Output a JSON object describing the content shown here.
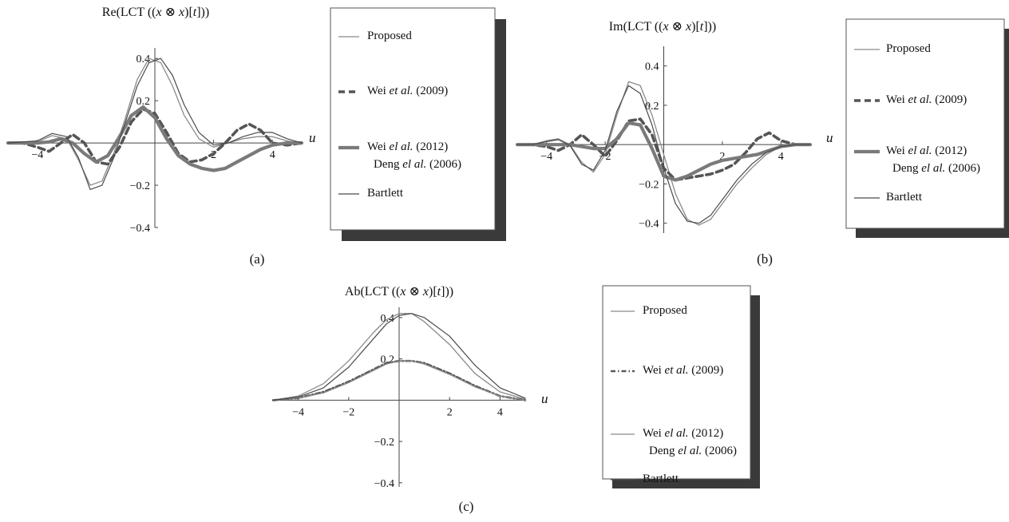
{
  "colors": {
    "background": "#ffffff",
    "axis": "#444444",
    "legend_border": "#555555",
    "legend_shadow": "#3a3a3a"
  },
  "chart_data": [
    {
      "id": "a",
      "type": "line",
      "title": "Re(LCT ((x ⊗ x)[t]))",
      "xlabel": "u",
      "ylabel": "",
      "caption": "(a)",
      "xlim": [
        -5,
        5
      ],
      "ylim": [
        -0.4,
        0.45
      ],
      "xticks": [
        {
          "v": -4,
          "label": "−4"
        },
        {
          "v": 2,
          "label": "2"
        },
        {
          "v": 4,
          "label": "4"
        }
      ],
      "yticks": [
        {
          "v": 0.4,
          "label": "0.4"
        },
        {
          "v": 0.2,
          "label": "0.2"
        },
        {
          "v": -0.2,
          "label": "−0.2"
        },
        {
          "v": -0.4,
          "label": "−0.4"
        }
      ],
      "legend_position": "right",
      "series": [
        {
          "name": "Proposed",
          "style": "thin-light",
          "x": [
            -5,
            -4,
            -3.5,
            -3,
            -2.6,
            -2.2,
            -1.8,
            -1.4,
            -1,
            -0.6,
            -0.2,
            0.2,
            0.6,
            1,
            1.5,
            2,
            2.5,
            3,
            3.5,
            4,
            4.5,
            5
          ],
          "y": [
            0,
            0.005,
            0.035,
            0.02,
            -0.08,
            -0.2,
            -0.18,
            -0.05,
            0.12,
            0.3,
            0.4,
            0.38,
            0.27,
            0.13,
            0.02,
            -0.02,
            0.0,
            0.02,
            0.03,
            0.03,
            0.01,
            0
          ]
        },
        {
          "name": "Wei et al. (2009)",
          "style": "thick-dashed",
          "x": [
            -5,
            -4.5,
            -4,
            -3.6,
            -3.2,
            -2.8,
            -2.4,
            -2,
            -1.6,
            -1.2,
            -0.8,
            -0.4,
            0,
            0.4,
            0.8,
            1.2,
            1.6,
            2,
            2.4,
            2.8,
            3.2,
            3.6,
            4,
            4.5,
            5
          ],
          "y": [
            0,
            0,
            -0.02,
            -0.04,
            0.0,
            0.04,
            0.0,
            -0.09,
            -0.1,
            -0.02,
            0.1,
            0.16,
            0.14,
            0.05,
            -0.05,
            -0.09,
            -0.08,
            -0.05,
            0.0,
            0.06,
            0.09,
            0.06,
            0.0,
            -0.01,
            0
          ]
        },
        {
          "name": "Wei el al. (2012)",
          "style": "thick-solid",
          "x": [
            -5,
            -4.5,
            -4,
            -3.6,
            -3.2,
            -2.8,
            -2.4,
            -2,
            -1.6,
            -1.2,
            -0.8,
            -0.4,
            0,
            0.4,
            0.8,
            1.2,
            1.6,
            2,
            2.4,
            2.8,
            3.2,
            3.6,
            4,
            4.5,
            5
          ],
          "y": [
            0,
            0,
            0,
            0.005,
            0.02,
            0.0,
            -0.05,
            -0.09,
            -0.06,
            0.03,
            0.13,
            0.17,
            0.12,
            0.02,
            -0.06,
            -0.1,
            -0.12,
            -0.13,
            -0.12,
            -0.09,
            -0.06,
            -0.03,
            -0.01,
            0,
            0
          ]
        },
        {
          "name": "Bartlett",
          "style": "thin-dark",
          "x": [
            -5,
            -4,
            -3.5,
            -3,
            -2.6,
            -2.2,
            -1.8,
            -1.4,
            -1,
            -0.6,
            -0.2,
            0.2,
            0.6,
            1,
            1.5,
            2,
            2.5,
            3,
            3.5,
            4,
            4.5,
            5
          ],
          "y": [
            0,
            0.01,
            0.045,
            0.03,
            -0.07,
            -0.22,
            -0.2,
            -0.07,
            0.1,
            0.27,
            0.38,
            0.4,
            0.32,
            0.18,
            0.05,
            -0.01,
            0.0,
            0.03,
            0.05,
            0.05,
            0.02,
            0
          ]
        }
      ],
      "legend": [
        {
          "text": "Proposed",
          "style": "thin-light"
        },
        {
          "text": "Wei et al. (2009)",
          "style": "thick-dashed"
        },
        {
          "text": "Wei el al. (2012)",
          "text2": "Deng el al. (2006)",
          "style": "thick-solid"
        },
        {
          "text": "Bartlett",
          "style": "thin-dark"
        }
      ]
    },
    {
      "id": "b",
      "type": "line",
      "title": "Im(LCT ((x ⊗ x)[t]))",
      "xlabel": "u",
      "ylabel": "",
      "caption": "(b)",
      "xlim": [
        -5,
        5
      ],
      "ylim": [
        -0.45,
        0.5
      ],
      "xticks": [
        {
          "v": -4,
          "label": "−4"
        },
        {
          "v": -2,
          "label": "−2"
        },
        {
          "v": 2,
          "label": "2"
        },
        {
          "v": 4,
          "label": "4"
        }
      ],
      "yticks": [
        {
          "v": 0.4,
          "label": "0.4"
        },
        {
          "v": 0.2,
          "label": "0.2"
        },
        {
          "v": -0.2,
          "label": "−0.2"
        },
        {
          "v": -0.4,
          "label": "−0.4"
        }
      ],
      "legend_position": "right",
      "series": [
        {
          "name": "Proposed",
          "style": "thin-light",
          "x": [
            -5,
            -4.5,
            -4,
            -3.6,
            -3.2,
            -2.8,
            -2.4,
            -2,
            -1.6,
            -1.2,
            -0.8,
            -0.4,
            0,
            0.4,
            0.8,
            1.2,
            1.6,
            2,
            2.5,
            3,
            3.5,
            4,
            4.5,
            5
          ],
          "y": [
            0,
            0.0,
            0.02,
            0.03,
            0.0,
            -0.09,
            -0.14,
            -0.05,
            0.15,
            0.32,
            0.3,
            0.15,
            -0.05,
            -0.25,
            -0.38,
            -0.41,
            -0.38,
            -0.3,
            -0.2,
            -0.12,
            -0.05,
            -0.01,
            0.0,
            0
          ]
        },
        {
          "name": "Wei et al. (2009)",
          "style": "thick-dashed",
          "x": [
            -5,
            -4.5,
            -4,
            -3.6,
            -3.2,
            -2.8,
            -2.4,
            -2,
            -1.6,
            -1.2,
            -0.8,
            -0.4,
            0,
            0.4,
            0.8,
            1.2,
            1.6,
            2,
            2.4,
            2.8,
            3.2,
            3.6,
            4,
            4.5,
            5
          ],
          "y": [
            0,
            0,
            -0.01,
            -0.03,
            0.0,
            0.05,
            0.0,
            -0.06,
            0.02,
            0.12,
            0.13,
            0.05,
            -0.12,
            -0.18,
            -0.17,
            -0.16,
            -0.15,
            -0.13,
            -0.1,
            -0.04,
            0.03,
            0.06,
            0.02,
            0.0,
            0
          ]
        },
        {
          "name": "Wei el al. (2012)",
          "style": "thick-solid",
          "x": [
            -5,
            -4.5,
            -4,
            -3.6,
            -3.2,
            -2.8,
            -2.4,
            -2,
            -1.6,
            -1.2,
            -0.8,
            -0.4,
            0,
            0.4,
            0.8,
            1.2,
            1.6,
            2,
            2.4,
            2.8,
            3.2,
            3.6,
            4,
            4.5,
            5
          ],
          "y": [
            0,
            0,
            0,
            0.0,
            0.0,
            -0.01,
            -0.02,
            -0.02,
            0.03,
            0.11,
            0.1,
            -0.02,
            -0.16,
            -0.18,
            -0.16,
            -0.13,
            -0.1,
            -0.08,
            -0.07,
            -0.06,
            -0.05,
            -0.03,
            -0.01,
            0,
            0
          ]
        },
        {
          "name": "Bartlett",
          "style": "thin-dark",
          "x": [
            -5,
            -4.5,
            -4,
            -3.6,
            -3.2,
            -2.8,
            -2.4,
            -2,
            -1.6,
            -1.2,
            -0.8,
            -0.4,
            0,
            0.4,
            0.8,
            1.2,
            1.6,
            2,
            2.5,
            3,
            3.5,
            4,
            4.5,
            5
          ],
          "y": [
            0,
            0.0,
            0.015,
            0.025,
            -0.005,
            -0.1,
            -0.13,
            -0.03,
            0.17,
            0.3,
            0.26,
            0.1,
            -0.12,
            -0.3,
            -0.39,
            -0.4,
            -0.36,
            -0.28,
            -0.18,
            -0.1,
            -0.04,
            -0.01,
            0.0,
            0
          ]
        }
      ],
      "legend": [
        {
          "text": "Proposed",
          "style": "thin-light"
        },
        {
          "text": "Wei et al. (2009)",
          "style": "thick-dashed"
        },
        {
          "text": "Wei el al. (2012)",
          "text2": "Deng el al. (2006)",
          "style": "thick-solid"
        },
        {
          "text": "Bartlett",
          "style": "thin-dark"
        }
      ]
    },
    {
      "id": "c",
      "type": "line",
      "title": "Ab(LCT ((x ⊗ x)[t]))",
      "xlabel": "u",
      "ylabel": "",
      "caption": "(c)",
      "xlim": [
        -5,
        5
      ],
      "ylim": [
        -0.42,
        0.45
      ],
      "xticks": [
        {
          "v": -4,
          "label": "−4"
        },
        {
          "v": -2,
          "label": "−2"
        },
        {
          "v": 2,
          "label": "2"
        },
        {
          "v": 4,
          "label": "4"
        }
      ],
      "yticks": [
        {
          "v": 0.4,
          "label": "0.4"
        },
        {
          "v": 0.2,
          "label": "0.2"
        },
        {
          "v": -0.2,
          "label": "−0.2"
        },
        {
          "v": -0.4,
          "label": "−0.4"
        }
      ],
      "legend_position": "right",
      "series": [
        {
          "name": "Proposed",
          "style": "thin-light",
          "x": [
            -5,
            -4,
            -3,
            -2,
            -1,
            -0.5,
            0,
            0.5,
            1,
            2,
            3,
            4,
            5
          ],
          "y": [
            0,
            0.02,
            0.08,
            0.19,
            0.33,
            0.39,
            0.42,
            0.42,
            0.38,
            0.27,
            0.13,
            0.04,
            0.005
          ]
        },
        {
          "name": "Wei et al. (2009)",
          "style": "dash-dot",
          "x": [
            -5,
            -4,
            -3,
            -2,
            -1,
            -0.5,
            0,
            0.5,
            1,
            2,
            3,
            4,
            5
          ],
          "y": [
            0,
            0.01,
            0.04,
            0.09,
            0.15,
            0.18,
            0.19,
            0.19,
            0.18,
            0.13,
            0.07,
            0.02,
            0
          ]
        },
        {
          "name": "Wei el al. (2012)",
          "style": "thin-light",
          "x": [
            -5,
            -4,
            -3,
            -2,
            -1,
            -0.5,
            0,
            0.5,
            1,
            2,
            3,
            4,
            5
          ],
          "y": [
            0,
            0.01,
            0.035,
            0.085,
            0.145,
            0.175,
            0.19,
            0.19,
            0.175,
            0.125,
            0.065,
            0.02,
            0
          ]
        },
        {
          "name": "Bartlett",
          "style": "thin-dark",
          "x": [
            -5,
            -4,
            -3,
            -2,
            -1,
            -0.5,
            0,
            0.5,
            1,
            2,
            3,
            4,
            5
          ],
          "y": [
            0,
            0.015,
            0.06,
            0.16,
            0.3,
            0.37,
            0.41,
            0.42,
            0.4,
            0.31,
            0.17,
            0.06,
            0.01
          ]
        }
      ],
      "legend": [
        {
          "text": "Proposed",
          "style": "thin-light"
        },
        {
          "text": "Wei et al. (2009)",
          "style": "dash-dot"
        },
        {
          "text": "Wei el al. (2012)",
          "text2": "Deng el al. (2006)",
          "style": "thin-light"
        },
        {
          "text": "Bartlett",
          "style": "thin-dark"
        }
      ]
    }
  ]
}
